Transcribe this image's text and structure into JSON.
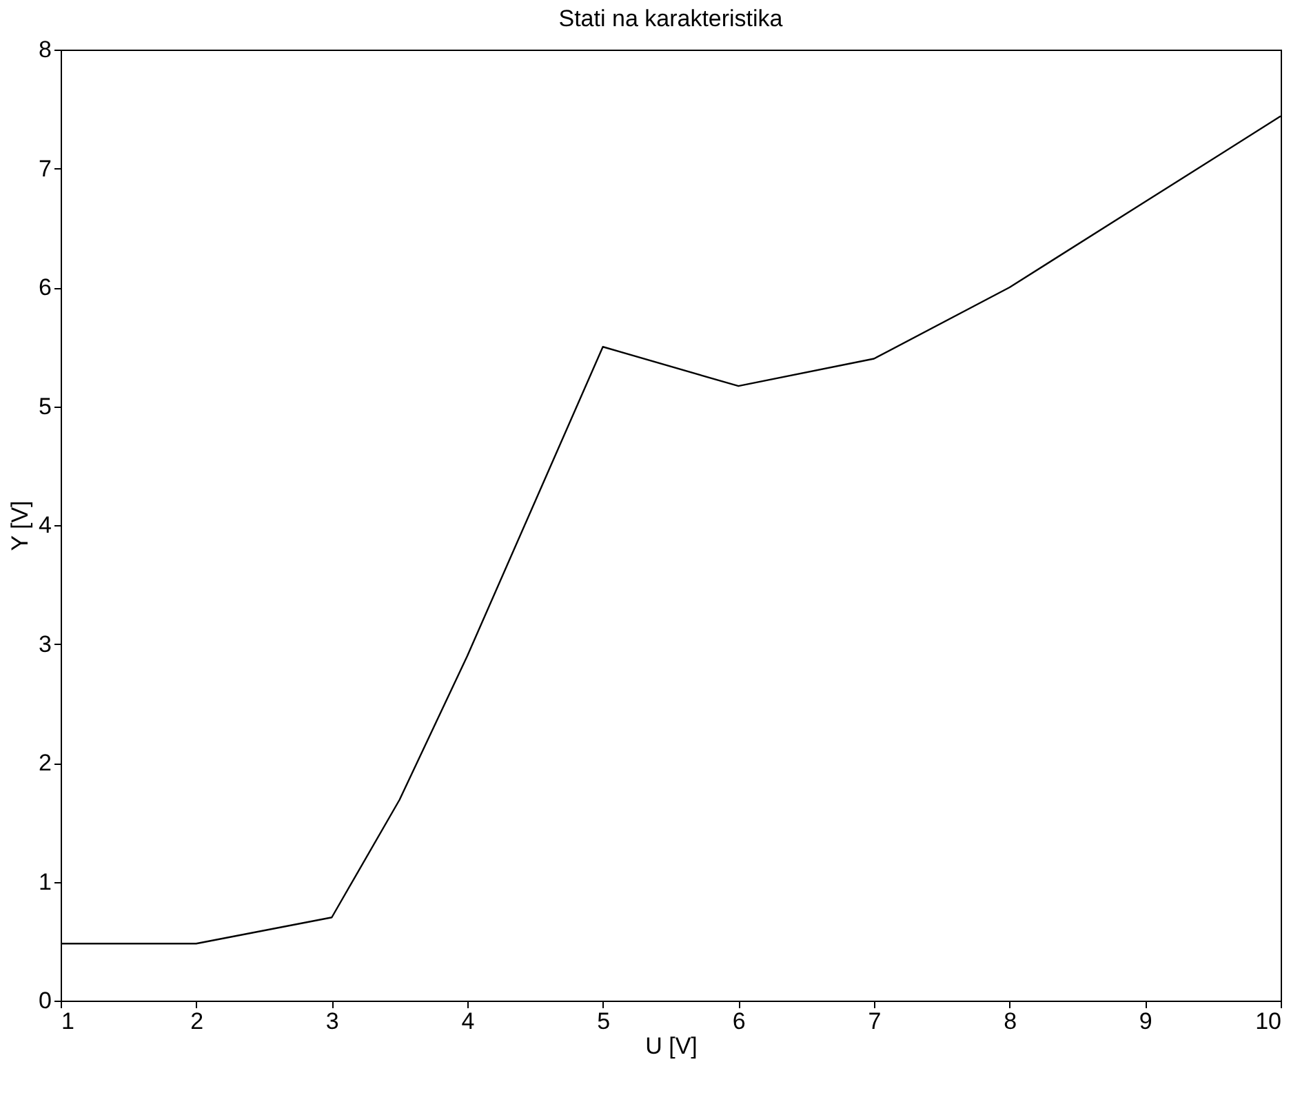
{
  "chart_data": {
    "type": "line",
    "title": "Stati na karakteristika",
    "xlabel": "U [V]",
    "ylabel": "Y [V]",
    "x": [
      1,
      2,
      3,
      3.5,
      4,
      5,
      6,
      7,
      8,
      9,
      10
    ],
    "series": [
      {
        "color": "#000000",
        "values": [
          0.48,
          0.48,
          0.7,
          1.69,
          2.9,
          5.5,
          5.17,
          5.4,
          6.0,
          6.72,
          7.44
        ]
      }
    ],
    "xlim": [
      1,
      10
    ],
    "xticks": [
      1,
      2,
      3,
      4,
      5,
      6,
      7,
      8,
      9,
      10
    ],
    "ylim": [
      0,
      8
    ],
    "yticks": [
      0,
      1,
      2,
      3,
      4,
      5,
      6,
      7,
      8
    ],
    "grid": false,
    "marker": "none",
    "line_style": "solid"
  }
}
